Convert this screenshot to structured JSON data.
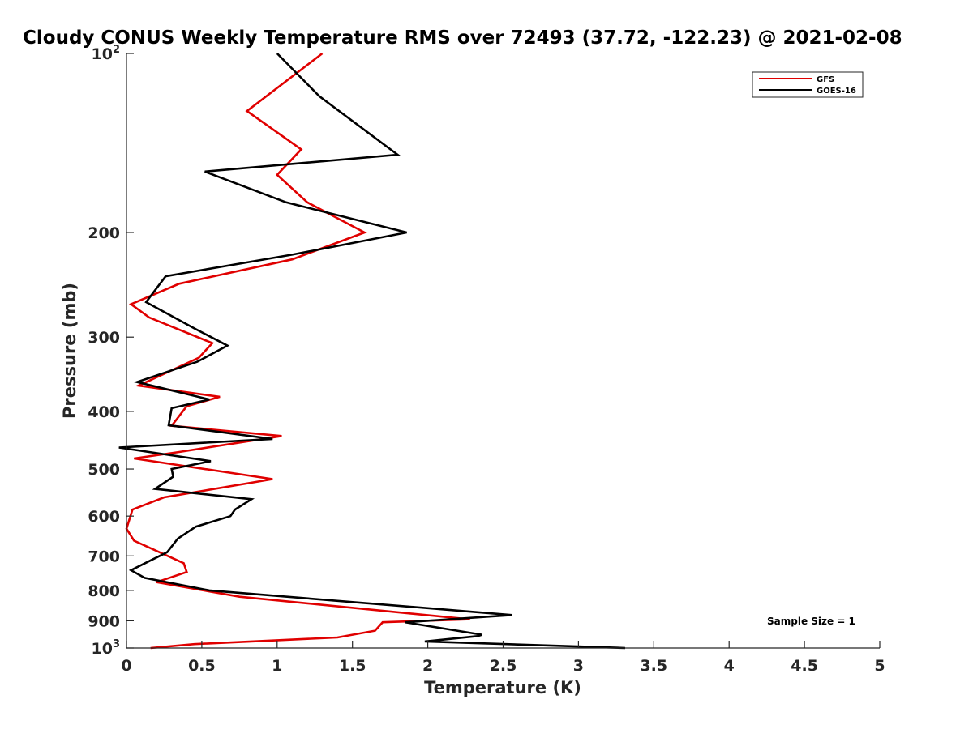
{
  "chart_data": {
    "type": "line",
    "title": "Cloudy CONUS Weekly Temperature RMS over 72493 (37.72, -122.23) @ 2021-02-08",
    "xlabel": "Temperature (K)",
    "ylabel": "Pressure (mb)",
    "xlim": [
      0,
      5
    ],
    "ylim": [
      1000,
      100
    ],
    "yscale": "log",
    "y_reversed": true,
    "grid": false,
    "legend_position": "top-right",
    "x_ticks": [
      "0",
      "0.5",
      "1",
      "1.5",
      "2",
      "2.5",
      "3",
      "3.5",
      "4",
      "4.5",
      "5"
    ],
    "y_ticks": [
      {
        "value": 100,
        "base": "10",
        "exp": "2"
      },
      {
        "value": 200,
        "label": "200"
      },
      {
        "value": 300,
        "label": "300"
      },
      {
        "value": 400,
        "label": "400"
      },
      {
        "value": 500,
        "label": "500"
      },
      {
        "value": 600,
        "label": "600"
      },
      {
        "value": 700,
        "label": "700"
      },
      {
        "value": 800,
        "label": "800"
      },
      {
        "value": 900,
        "label": "900"
      },
      {
        "value": 1000,
        "base": "10",
        "exp": "3"
      }
    ],
    "annotation": "Sample Size = 1",
    "series": [
      {
        "name": "GFS",
        "color": "#e00000",
        "x": [
          1.3,
          0.8,
          1.16,
          1.0,
          1.2,
          1.58,
          1.1,
          0.35,
          0.03,
          0.15,
          0.57,
          0.48,
          0.08,
          0.62,
          0.4,
          0.3,
          1.03,
          0.35,
          0.05,
          0.97,
          0.25,
          0.04,
          0.0,
          0.05,
          0.3,
          0.38,
          0.4,
          0.2,
          0.75,
          2.28,
          1.7,
          1.65,
          1.4,
          0.45,
          0.16
        ],
        "y": [
          100,
          125,
          145,
          160,
          178,
          200,
          222,
          244,
          264,
          278,
          307,
          325,
          362,
          378,
          392,
          423,
          440,
          468,
          480,
          520,
          558,
          585,
          630,
          660,
          705,
          720,
          745,
          775,
          820,
          895,
          905,
          935,
          960,
          985,
          1000
        ]
      },
      {
        "name": "GOES-16",
        "color": "#000000",
        "x": [
          1.0,
          1.28,
          1.8,
          0.52,
          1.06,
          1.86,
          1.1,
          0.26,
          0.13,
          0.45,
          0.67,
          0.47,
          0.07,
          0.55,
          0.3,
          0.28,
          0.97,
          -0.05,
          0.56,
          0.3,
          0.31,
          0.19,
          0.83,
          0.72,
          0.69,
          0.46,
          0.34,
          0.27,
          0.03,
          0.12,
          0.55,
          2.56,
          1.85,
          2.36,
          2.33,
          1.98,
          3.31
        ],
        "y": [
          100,
          118,
          148,
          158,
          178,
          200,
          218,
          237,
          262,
          290,
          310,
          330,
          357,
          382,
          395,
          422,
          445,
          460,
          485,
          500,
          515,
          540,
          562,
          585,
          600,
          625,
          655,
          690,
          740,
          762,
          800,
          880,
          905,
          950,
          955,
          975,
          1000
        ]
      }
    ]
  }
}
